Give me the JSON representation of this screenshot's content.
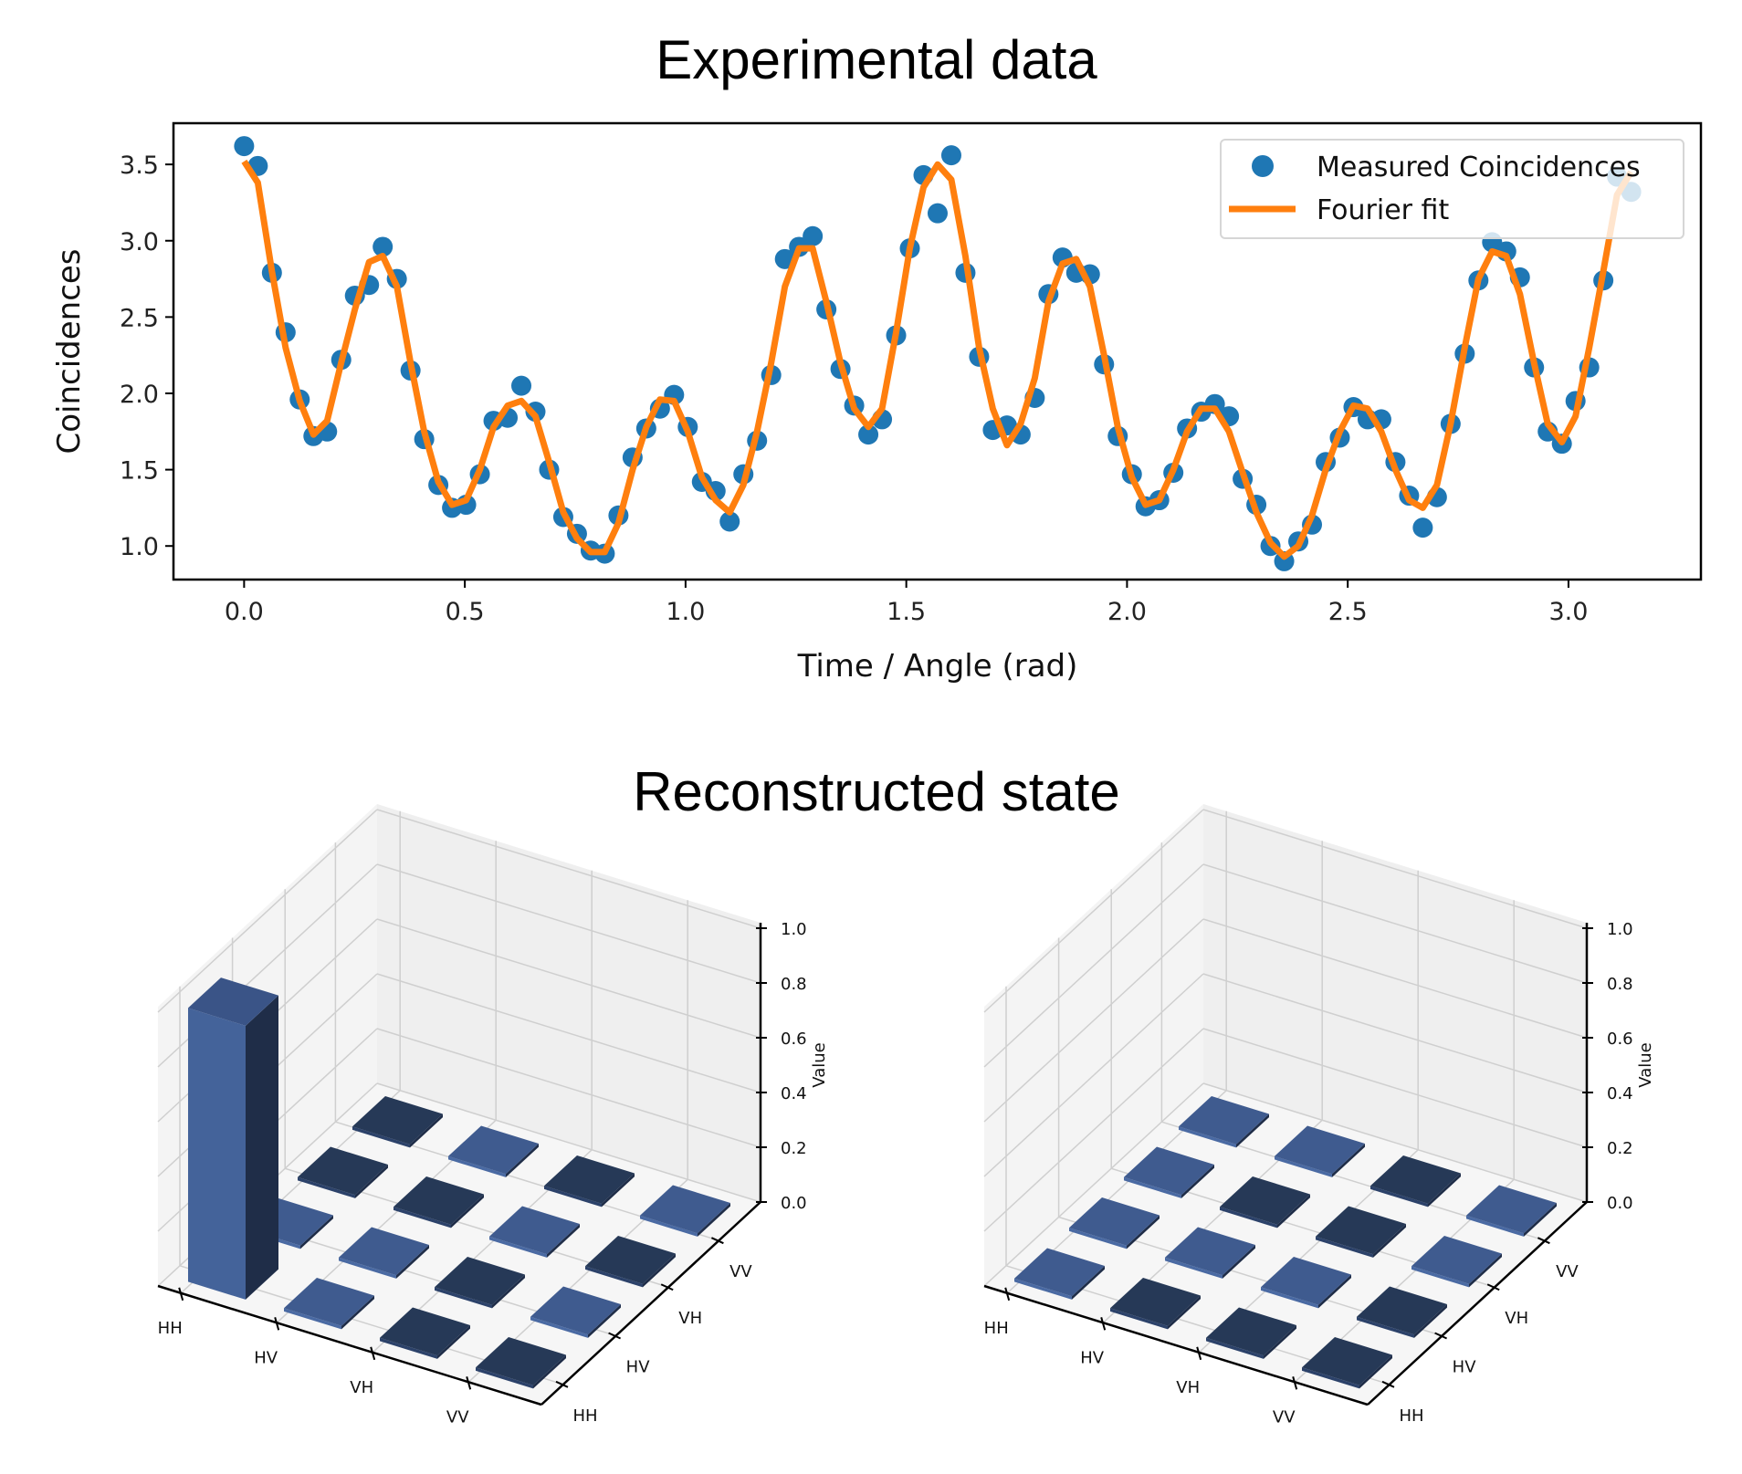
{
  "chart_data": [
    {
      "type": "scatter+line",
      "title": "Experimental data",
      "xlabel": "Time / Angle (rad)",
      "ylabel": "Coincidences",
      "xlim": [
        -0.16,
        3.3
      ],
      "ylim": [
        0.78,
        3.77
      ],
      "xticks": [
        "0.0",
        "0.5",
        "1.0",
        "1.5",
        "2.0",
        "2.5",
        "3.0"
      ],
      "yticks": [
        "1.0",
        "1.5",
        "2.0",
        "2.5",
        "3.0",
        "3.5"
      ],
      "grid": false,
      "legend_position": "top-right",
      "x": [
        0,
        0.031,
        0.063,
        0.094,
        0.126,
        0.157,
        0.188,
        0.22,
        0.251,
        0.283,
        0.314,
        0.346,
        0.377,
        0.408,
        0.44,
        0.471,
        0.503,
        0.534,
        0.565,
        0.597,
        0.628,
        0.66,
        0.691,
        0.723,
        0.754,
        0.785,
        0.817,
        0.848,
        0.88,
        0.911,
        0.942,
        0.974,
        1.005,
        1.037,
        1.068,
        1.1,
        1.131,
        1.162,
        1.194,
        1.225,
        1.257,
        1.288,
        1.319,
        1.351,
        1.382,
        1.414,
        1.445,
        1.477,
        1.508,
        1.539,
        1.571,
        1.602,
        1.634,
        1.665,
        1.696,
        1.728,
        1.759,
        1.791,
        1.822,
        1.854,
        1.885,
        1.916,
        1.948,
        1.979,
        2.011,
        2.042,
        2.073,
        2.105,
        2.136,
        2.168,
        2.199,
        2.231,
        2.262,
        2.293,
        2.325,
        2.356,
        2.388,
        2.419,
        2.45,
        2.482,
        2.513,
        2.545,
        2.576,
        2.608,
        2.639,
        2.67,
        2.702,
        2.733,
        2.765,
        2.796,
        2.827,
        2.859,
        2.89,
        2.922,
        2.953,
        2.985,
        3.016,
        3.047,
        3.079,
        3.11,
        3.142
      ],
      "series": [
        {
          "name": "Measured Coincidences",
          "kind": "scatter",
          "color": "#1f77b4",
          "values": [
            3.62,
            3.49,
            2.79,
            2.4,
            1.96,
            1.72,
            1.75,
            2.22,
            2.64,
            2.71,
            2.96,
            2.75,
            2.15,
            1.7,
            1.4,
            1.25,
            1.27,
            1.47,
            1.82,
            1.84,
            2.05,
            1.88,
            1.5,
            1.19,
            1.08,
            0.97,
            0.95,
            1.2,
            1.58,
            1.77,
            1.9,
            1.99,
            1.78,
            1.42,
            1.36,
            1.16,
            1.47,
            1.69,
            2.12,
            2.88,
            2.96,
            3.03,
            2.55,
            2.16,
            1.92,
            1.73,
            1.83,
            2.38,
            2.95,
            3.43,
            3.18,
            3.56,
            2.79,
            2.24,
            1.76,
            1.79,
            1.73,
            1.97,
            2.65,
            2.89,
            2.79,
            2.78,
            2.19,
            1.72,
            1.47,
            1.26,
            1.3,
            1.48,
            1.77,
            1.88,
            1.93,
            1.85,
            1.44,
            1.27,
            1.0,
            0.9,
            1.03,
            1.14,
            1.55,
            1.71,
            1.91,
            1.83,
            1.83,
            1.55,
            1.33,
            1.12,
            1.32,
            1.8,
            2.26,
            2.74,
            2.99,
            2.93,
            2.76,
            2.17,
            1.75,
            1.67,
            1.95,
            2.17,
            2.74,
            3.42,
            3.32
          ]
        },
        {
          "name": "Fourier fit",
          "kind": "line",
          "color": "#ff7f0e",
          "values": [
            3.52,
            3.38,
            2.8,
            2.3,
            1.95,
            1.73,
            1.82,
            2.2,
            2.55,
            2.86,
            2.9,
            2.7,
            2.2,
            1.75,
            1.42,
            1.27,
            1.3,
            1.5,
            1.78,
            1.92,
            1.95,
            1.85,
            1.55,
            1.22,
            1.05,
            0.96,
            0.96,
            1.15,
            1.5,
            1.78,
            1.96,
            1.95,
            1.75,
            1.45,
            1.3,
            1.22,
            1.4,
            1.75,
            2.2,
            2.7,
            2.95,
            2.95,
            2.6,
            2.2,
            1.9,
            1.78,
            1.9,
            2.4,
            2.95,
            3.35,
            3.5,
            3.4,
            2.9,
            2.3,
            1.9,
            1.66,
            1.8,
            2.1,
            2.6,
            2.85,
            2.88,
            2.7,
            2.25,
            1.78,
            1.45,
            1.27,
            1.3,
            1.5,
            1.75,
            1.9,
            1.9,
            1.75,
            1.48,
            1.22,
            1.02,
            0.93,
            1.0,
            1.2,
            1.5,
            1.75,
            1.92,
            1.9,
            1.75,
            1.5,
            1.3,
            1.25,
            1.4,
            1.8,
            2.3,
            2.75,
            2.93,
            2.9,
            2.65,
            2.2,
            1.8,
            1.68,
            1.85,
            2.3,
            2.8,
            3.3,
            3.45
          ]
        }
      ]
    },
    {
      "type": "bar3d",
      "title": "Reconstructed state",
      "categories": [
        "HH",
        "HV",
        "VH",
        "VV"
      ],
      "zlabel": "Value",
      "zlim": [
        0,
        1.0
      ],
      "zticks": [
        "0.0",
        "0.2",
        "0.4",
        "0.6",
        "0.8",
        "1.0"
      ],
      "values": [
        [
          1,
          0,
          0,
          0
        ],
        [
          0,
          0,
          0,
          0
        ],
        [
          0,
          0,
          0,
          0
        ],
        [
          0,
          0,
          0,
          0
        ]
      ],
      "tile_shades": [
        [
          "bar",
          "light",
          "dark",
          "dark"
        ],
        [
          "light",
          "light",
          "dark",
          "light"
        ],
        [
          "dark",
          "dark",
          "light",
          "dark"
        ],
        [
          "dark",
          "light",
          "dark",
          "light"
        ]
      ]
    },
    {
      "type": "bar3d",
      "categories": [
        "HH",
        "HV",
        "VH",
        "VV"
      ],
      "zlabel": "Value",
      "zlim": [
        0,
        1.0
      ],
      "zticks": [
        "0.0",
        "0.2",
        "0.4",
        "0.6",
        "0.8",
        "1.0"
      ],
      "values": [
        [
          0,
          0,
          0,
          0
        ],
        [
          0,
          0,
          0,
          0
        ],
        [
          0,
          0,
          0,
          0
        ],
        [
          0,
          0,
          0,
          0
        ]
      ],
      "tile_shades": [
        [
          "light",
          "dark",
          "dark",
          "dark"
        ],
        [
          "light",
          "light",
          "light",
          "dark"
        ],
        [
          "light",
          "dark",
          "dark",
          "light"
        ],
        [
          "light",
          "light",
          "dark",
          "light"
        ]
      ]
    }
  ],
  "colors": {
    "bar_light": "#3f5b8f",
    "bar_dark": "#263957",
    "bar_side": "#1f2d48"
  }
}
